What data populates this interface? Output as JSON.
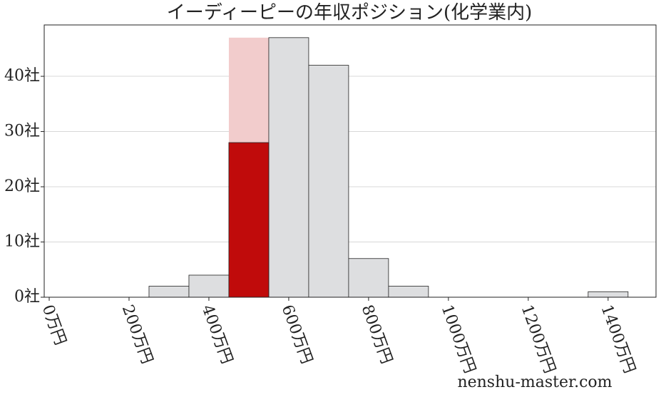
{
  "chart_data": {
    "type": "histogram",
    "title": "イーディーピーの年収ポジション(化学業内)",
    "watermark": "nenshu-master.com",
    "bins": [
      250,
      350,
      450,
      550,
      650,
      750,
      850,
      950,
      1050,
      1150,
      1250,
      1350,
      1450
    ],
    "series": [
      {
        "color": "#f2cccc",
        "values": [
          null,
          null,
          47,
          null,
          null,
          null,
          null,
          null,
          null,
          null,
          null,
          null
        ]
      },
      {
        "color": "#dddee0",
        "values": [
          2,
          4,
          null,
          47,
          42,
          7,
          2,
          0,
          0,
          0,
          0,
          1
        ]
      },
      {
        "color": "#c00b0b",
        "values": [
          null,
          null,
          28,
          null,
          null,
          null,
          null,
          null,
          null,
          null,
          null,
          null
        ]
      }
    ],
    "xlim": [
      -12.5,
      1520
    ],
    "xticks": [
      {
        "value": 0,
        "label": "0万円"
      },
      {
        "value": 200,
        "label": "200万円"
      },
      {
        "value": 400,
        "label": "400万円"
      },
      {
        "value": 600,
        "label": "600万円"
      },
      {
        "value": 800,
        "label": "800万円"
      },
      {
        "value": 1000,
        "label": "1000万円"
      },
      {
        "value": 1200,
        "label": "1200万円"
      },
      {
        "value": 1400,
        "label": "1400万円"
      }
    ],
    "ylim": [
      0,
      49.3
    ],
    "yticks": [
      {
        "value": 0,
        "label": "0社"
      },
      {
        "value": 10,
        "label": "10社"
      },
      {
        "value": 20,
        "label": "20社"
      },
      {
        "value": 30,
        "label": "30社"
      },
      {
        "value": 40,
        "label": "40社"
      }
    ],
    "grid": true
  }
}
